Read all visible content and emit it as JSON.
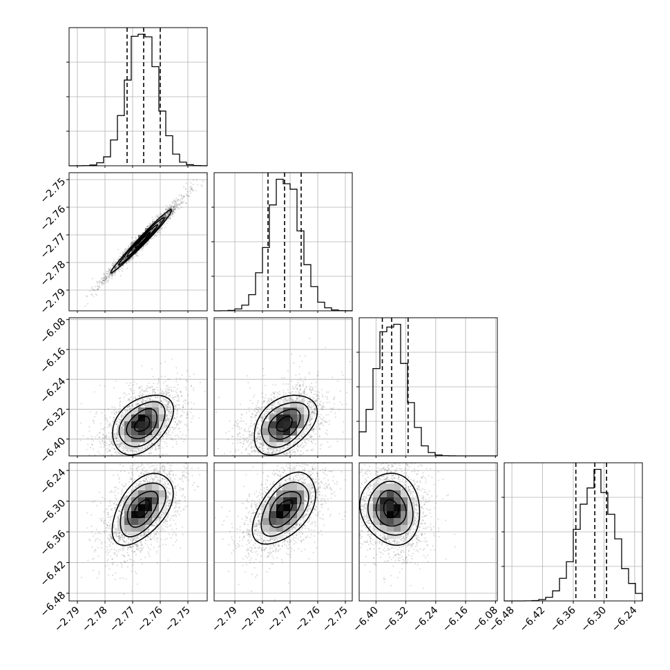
{
  "chart_data": {
    "type": "corner",
    "grid": true,
    "n_params": 4,
    "color_scale": {
      "low": "#ffffff",
      "high": "#000000",
      "point": "#000000"
    },
    "params": [
      {
        "range": [
          -2.793,
          -2.743
        ],
        "ticks": [
          -2.79,
          -2.78,
          -2.77,
          -2.76,
          -2.75
        ],
        "tick_labels": [
          "−2.79",
          "−2.78",
          "−2.77",
          "−2.76",
          "−2.75"
        ],
        "mean": -2.7665,
        "sd": 0.0055,
        "quantiles": [
          -2.772,
          -2.766,
          -2.76
        ],
        "hist_peak_ticks": [
          1,
          2,
          3
        ]
      },
      {
        "range": [
          -2.7975,
          -2.7475
        ],
        "ticks": [
          -2.79,
          -2.78,
          -2.77,
          -2.76,
          -2.75
        ],
        "tick_labels": [
          "−2.79",
          "−2.78",
          "−2.77",
          "−2.76",
          "−2.75"
        ],
        "mean": -2.772,
        "sd": 0.0057,
        "quantiles": [
          -2.778,
          -2.772,
          -2.766
        ]
      },
      {
        "range": [
          -6.445,
          -6.075
        ],
        "ticks": [
          -6.4,
          -6.32,
          -6.24,
          -6.16,
          -6.08
        ],
        "tick_labels": [
          "−6.40",
          "−6.32",
          "−6.24",
          "−6.16",
          "−6.08"
        ],
        "mean": -6.36,
        "sd": 0.04,
        "quantiles": [
          -6.383,
          -6.358,
          -6.314
        ]
      },
      {
        "range": [
          -6.495,
          -6.225
        ],
        "ticks": [
          -6.48,
          -6.42,
          -6.36,
          -6.3,
          -6.24
        ],
        "tick_labels": [
          "−6.48",
          "−6.42",
          "−6.36",
          "−6.30",
          "−6.24"
        ],
        "mean": -6.315,
        "sd": 0.035,
        "quantiles": [
          -6.355,
          -6.318,
          -6.295
        ]
      }
    ],
    "correlations": {
      "1_0": 0.985,
      "2_0": 0.4,
      "2_1": 0.4,
      "3_0": 0.5,
      "3_1": 0.5,
      "3_2": -0.1
    },
    "contour_levels_sigma": [
      0.5,
      1.0,
      1.5,
      2.0
    ]
  }
}
